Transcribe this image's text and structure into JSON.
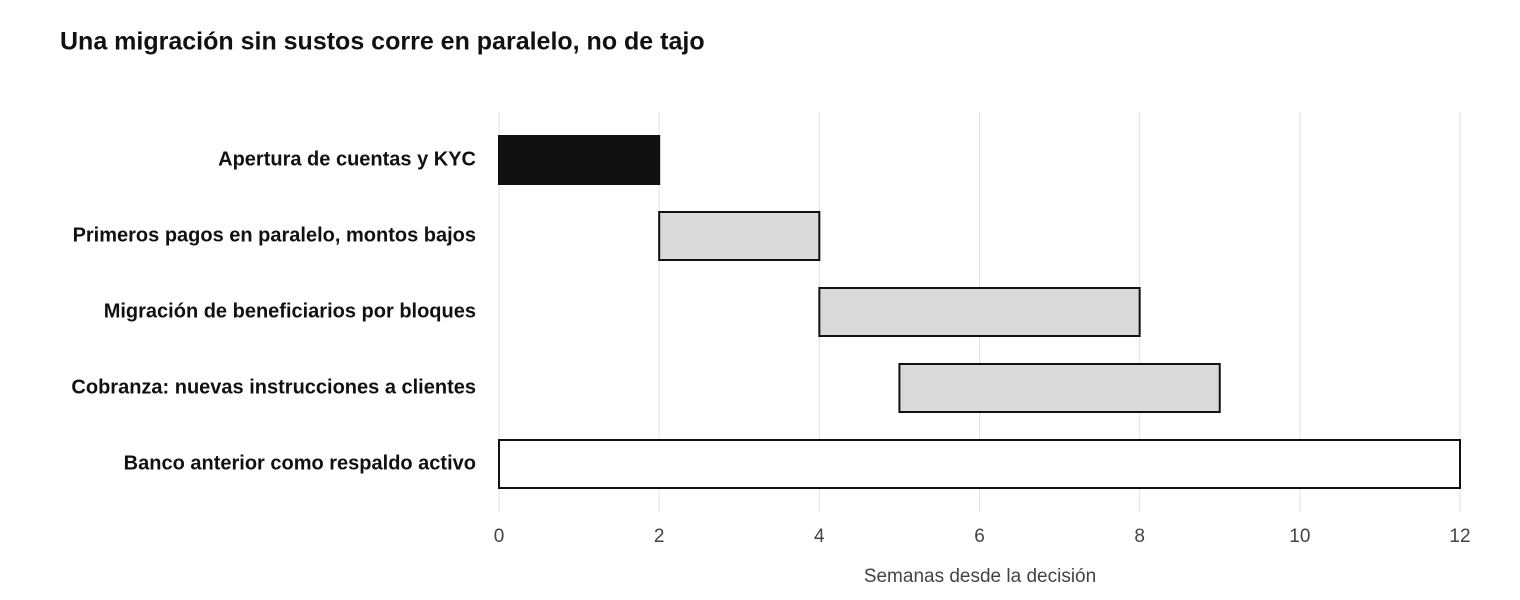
{
  "chart_data": {
    "type": "gantt",
    "title": "Una migración sin sustos corre en paralelo, no de tajo",
    "categories": [
      "Apertura de cuentas y KYC",
      "Primeros pagos en paralelo, montos bajos",
      "Migración de beneficiarios por bloques",
      "Cobranza: nuevas instrucciones a clientes",
      "Banco anterior como respaldo activo"
    ],
    "start": [
      0,
      2,
      4,
      5,
      0
    ],
    "end": [
      2,
      4,
      8,
      9,
      12
    ],
    "colors": [
      "#111111",
      "#d9d9d9",
      "#d9d9d9",
      "#d9d9d9",
      "#ffffff"
    ],
    "edge_color": "#111111",
    "x_label": "Semanas desde la decisión",
    "xlim": [
      0,
      12
    ],
    "xticks": [
      0,
      2,
      4,
      6,
      8,
      10,
      12
    ],
    "grid": true
  }
}
